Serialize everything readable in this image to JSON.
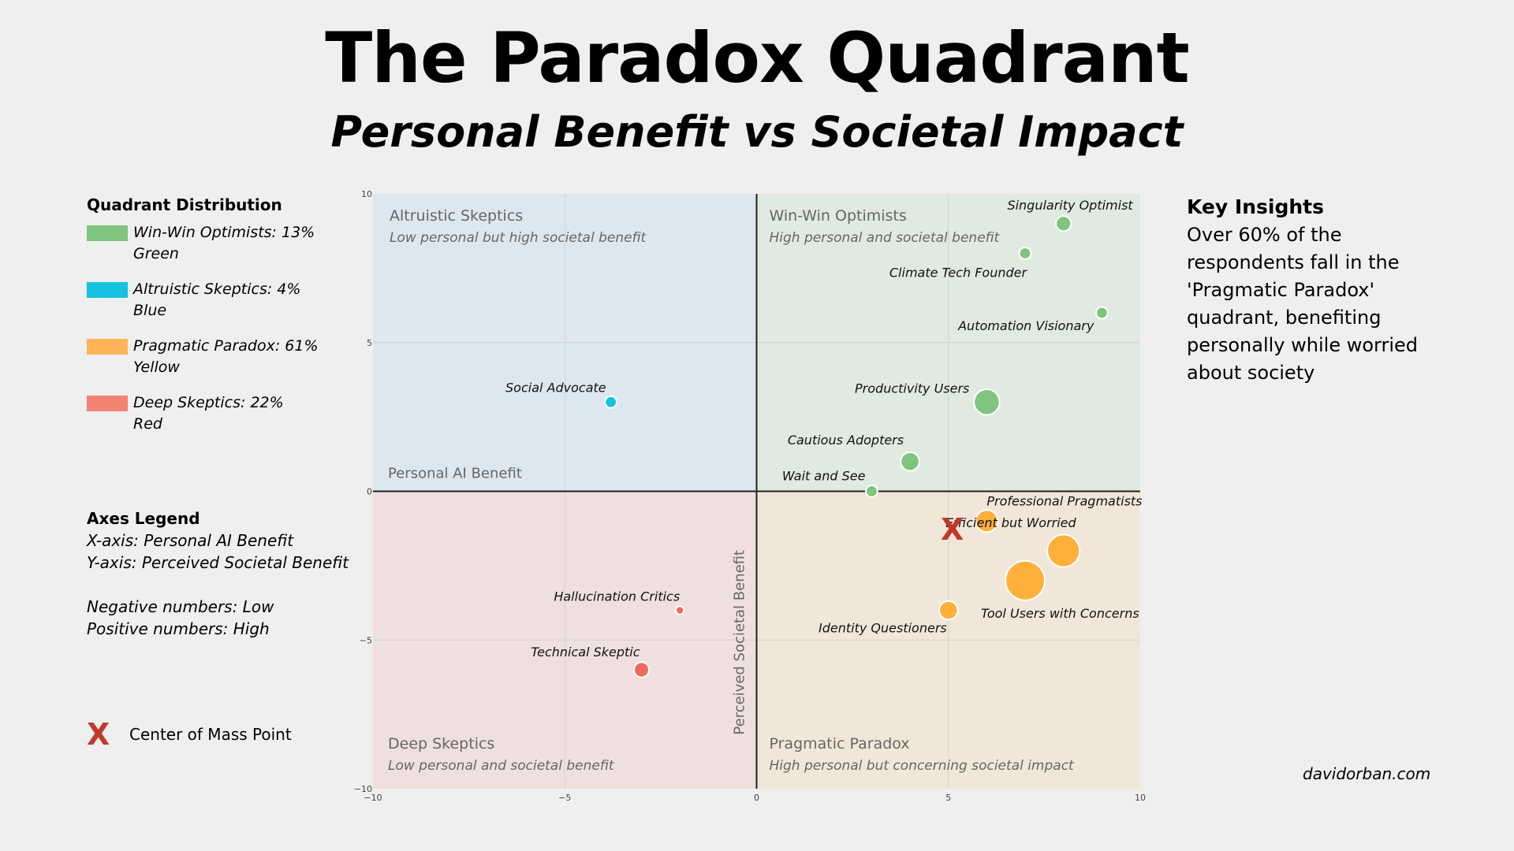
{
  "title": "The Paradox Quadrant",
  "subtitle": "Personal Benefit vs Societal Impact",
  "legend": {
    "heading": "Quadrant Distribution",
    "items": [
      {
        "line1": "Win-Win Optimists: 13%",
        "line2": "Green",
        "color": "#7fc47f"
      },
      {
        "line1": "Altruistic Skeptics: 4%",
        "line2": "Blue",
        "color": "#14c1df"
      },
      {
        "line1": "Pragmatic Paradox: 61%",
        "line2": "Yellow",
        "color": "#ffb557"
      },
      {
        "line1": "Deep Skeptics: 22%",
        "line2": "Red",
        "color": "#f28272"
      }
    ]
  },
  "axes_legend": {
    "heading": "Axes Legend",
    "x_line": "X-axis: Personal AI Benefit",
    "y_line": "Y-axis: Perceived Societal Benefit",
    "neg_line": "Negative numbers: Low",
    "pos_line": "Positive numbers: High"
  },
  "center_of_mass": {
    "symbol": "X",
    "label": "Center of Mass Point"
  },
  "insights": {
    "heading": "Key Insights",
    "text": "Over 60% of the respondents fall in the 'Pragmatic Paradox' quadrant,  benefiting personally while worried about society"
  },
  "credit": "davidorban.com",
  "colors": {
    "marker_red": "#c0392b",
    "axis_line": "#222222"
  },
  "chart_data": {
    "type": "scatter",
    "xlabel": "Personal AI Benefit",
    "ylabel": "Perceived Societal Benefit",
    "xlim": [
      -10,
      10
    ],
    "ylim": [
      -10,
      10
    ],
    "x_ticks": [
      "−10",
      "−5",
      "0",
      "5",
      "10"
    ],
    "y_ticks": [
      "−10",
      "−5",
      "0",
      "5",
      "10"
    ],
    "quadrants": [
      {
        "name": "Altruistic Skeptics",
        "desc": "Low personal but high societal benefit",
        "fill": "#dce7f0"
      },
      {
        "name": "Win-Win Optimists",
        "desc": "High personal and societal benefit",
        "fill": "#e0eae0"
      },
      {
        "name": "Deep Skeptics",
        "desc": "Low personal and societal benefit",
        "fill": "#f0dfdf"
      },
      {
        "name": "Pragmatic Paradox",
        "desc": "High personal but concerning societal impact",
        "fill": "#f1e7d8"
      }
    ],
    "center_of_mass": {
      "x": 5.1,
      "y": -1.2,
      "label": "X",
      "color": "#c0392b"
    },
    "points": [
      {
        "label": "Singularity Optimist",
        "x": 8,
        "y": 9,
        "size": 3,
        "group": "green",
        "anchor": "end",
        "dx": 88,
        "dy": -18
      },
      {
        "label": "Climate Tech Founder",
        "x": 7,
        "y": 8,
        "size": 2,
        "group": "green",
        "anchor": "end",
        "dx": 2,
        "dy": 30
      },
      {
        "label": "Automation Visionary",
        "x": 9,
        "y": 6,
        "size": 2,
        "group": "green",
        "anchor": "end",
        "dx": -10,
        "dy": 22
      },
      {
        "label": "Productivity Users",
        "x": 6,
        "y": 3,
        "size": 6,
        "group": "green",
        "anchor": "end",
        "dx": -22,
        "dy": -12
      },
      {
        "label": "Cautious Adopters",
        "x": 4,
        "y": 1,
        "size": 4,
        "group": "green",
        "anchor": "end",
        "dx": -8,
        "dy": -22
      },
      {
        "label": "Wait and See",
        "x": 3,
        "y": 0,
        "size": 2,
        "group": "green",
        "anchor": "end",
        "dx": -8,
        "dy": -14
      },
      {
        "label": "Social Advocate",
        "x": -3.8,
        "y": 3,
        "size": 2,
        "group": "blue",
        "anchor": "end",
        "dx": -6,
        "dy": -13
      },
      {
        "label": "Professional Pragmatists",
        "x": 6,
        "y": -1,
        "size": 5,
        "group": "yellow",
        "anchor": "start",
        "dx": 0,
        "dy": -20
      },
      {
        "label": "Efficient but Worried",
        "x": 8,
        "y": -2,
        "size": 8,
        "group": "yellow",
        "anchor": "end",
        "dx": 16,
        "dy": -30
      },
      {
        "label": "Tool Users with Concerns",
        "x": 7,
        "y": -3,
        "size": 10,
        "group": "yellow",
        "anchor": "start",
        "dx": -56,
        "dy": 47
      },
      {
        "label": "Identity Questioners",
        "x": 5,
        "y": -4,
        "size": 4,
        "group": "yellow",
        "anchor": "end",
        "dx": -2,
        "dy": 28
      },
      {
        "label": "Hallucination Critics",
        "x": -2,
        "y": -4,
        "size": 1,
        "group": "red",
        "anchor": "end",
        "dx": 0,
        "dy": -12
      },
      {
        "label": "Technical Skeptic",
        "x": -3,
        "y": -6,
        "size": 3,
        "group": "red",
        "anchor": "end",
        "dx": -2,
        "dy": -17
      }
    ],
    "group_colors": {
      "green": "#7fc47f",
      "blue": "#14c1df",
      "yellow": "#ffb03b",
      "red": "#ef6b5b"
    }
  }
}
